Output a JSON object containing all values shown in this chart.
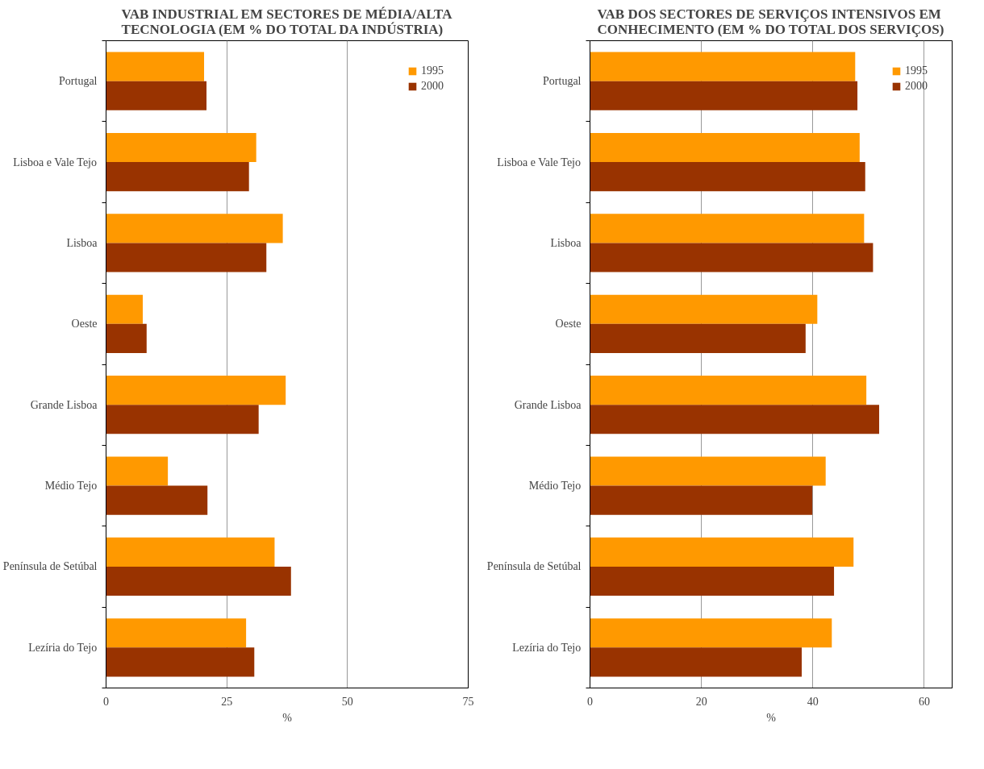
{
  "chart_data": [
    {
      "type": "bar",
      "orientation": "horizontal",
      "title": "VAB INDUSTRIAL EM SECTORES DE MÉDIA/ALTA TECNOLOGIA (EM % DO TOTAL DA INDÚSTRIA)",
      "xlabel": "%",
      "categories": [
        "Portugal",
        "Lisboa e Vale Tejo",
        "Lisboa",
        "Oeste",
        "Grande Lisboa",
        "Médio Tejo",
        "Península de Setúbal",
        "Lezíria do Tejo"
      ],
      "series": [
        {
          "name": "1995",
          "color": "#ff9900",
          "values": [
            20.3,
            31.1,
            36.6,
            7.6,
            37.2,
            12.8,
            34.9,
            29.0
          ]
        },
        {
          "name": "2000",
          "color": "#993300",
          "values": [
            20.8,
            29.6,
            33.2,
            8.4,
            31.6,
            21.0,
            38.3,
            30.7
          ]
        }
      ],
      "xlim": [
        0,
        75
      ],
      "xticks": [
        0,
        25,
        50,
        75
      ],
      "grid": "x",
      "legend": "top right"
    },
    {
      "type": "bar",
      "orientation": "horizontal",
      "title": "VAB DOS SECTORES DE SERVIÇOS INTENSIVOS EM CONHECIMENTO (EM % DO TOTAL DOS SERVIÇOS)",
      "xlabel": "%",
      "categories": [
        "Portugal",
        "Lisboa e Vale Tejo",
        "Lisboa",
        "Oeste",
        "Grande Lisboa",
        "Médio Tejo",
        "Península de Setúbal",
        "Lezíria do Tejo"
      ],
      "series": [
        {
          "name": "1995",
          "color": "#ff9900",
          "values": [
            47.6,
            48.4,
            49.2,
            40.8,
            49.6,
            42.3,
            47.3,
            43.4
          ]
        },
        {
          "name": "2000",
          "color": "#993300",
          "values": [
            48.0,
            49.4,
            50.8,
            38.7,
            51.9,
            39.9,
            43.8,
            38.0
          ]
        }
      ],
      "xlim": [
        0,
        65
      ],
      "xticks": [
        0,
        20,
        40,
        60
      ],
      "grid": "x",
      "legend": "top right"
    }
  ]
}
